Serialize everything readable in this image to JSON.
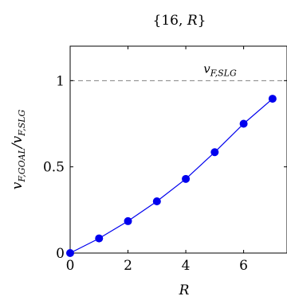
{
  "chart_data": {
    "type": "line",
    "title": "{16, R}",
    "xlabel": "R",
    "ylabel": "v_{F,GOAL}/v_{F,SLG}",
    "xlim": [
      0,
      7.5
    ],
    "ylim": [
      0,
      1.2
    ],
    "x_ticks": [
      {
        "value": 0,
        "label": "0"
      },
      {
        "value": 2,
        "label": "2"
      },
      {
        "value": 4,
        "label": "4"
      },
      {
        "value": 6,
        "label": "6"
      }
    ],
    "y_ticks": [
      {
        "value": 0,
        "label": "0"
      },
      {
        "value": 0.5,
        "label": "0.5"
      },
      {
        "value": 1,
        "label": "1"
      }
    ],
    "grid": false,
    "series": [
      {
        "x": [
          0,
          1,
          2,
          3,
          4,
          5,
          6,
          7
        ],
        "y": [
          0,
          0.085,
          0.185,
          0.3,
          0.43,
          0.585,
          0.75,
          0.895
        ],
        "color": "#0000ee",
        "marker": "circle"
      }
    ],
    "reference_lines": [
      {
        "axis": "y",
        "value": 1,
        "style": "dashed",
        "color": "#808080",
        "label": "v_{F,SLG}"
      }
    ]
  }
}
